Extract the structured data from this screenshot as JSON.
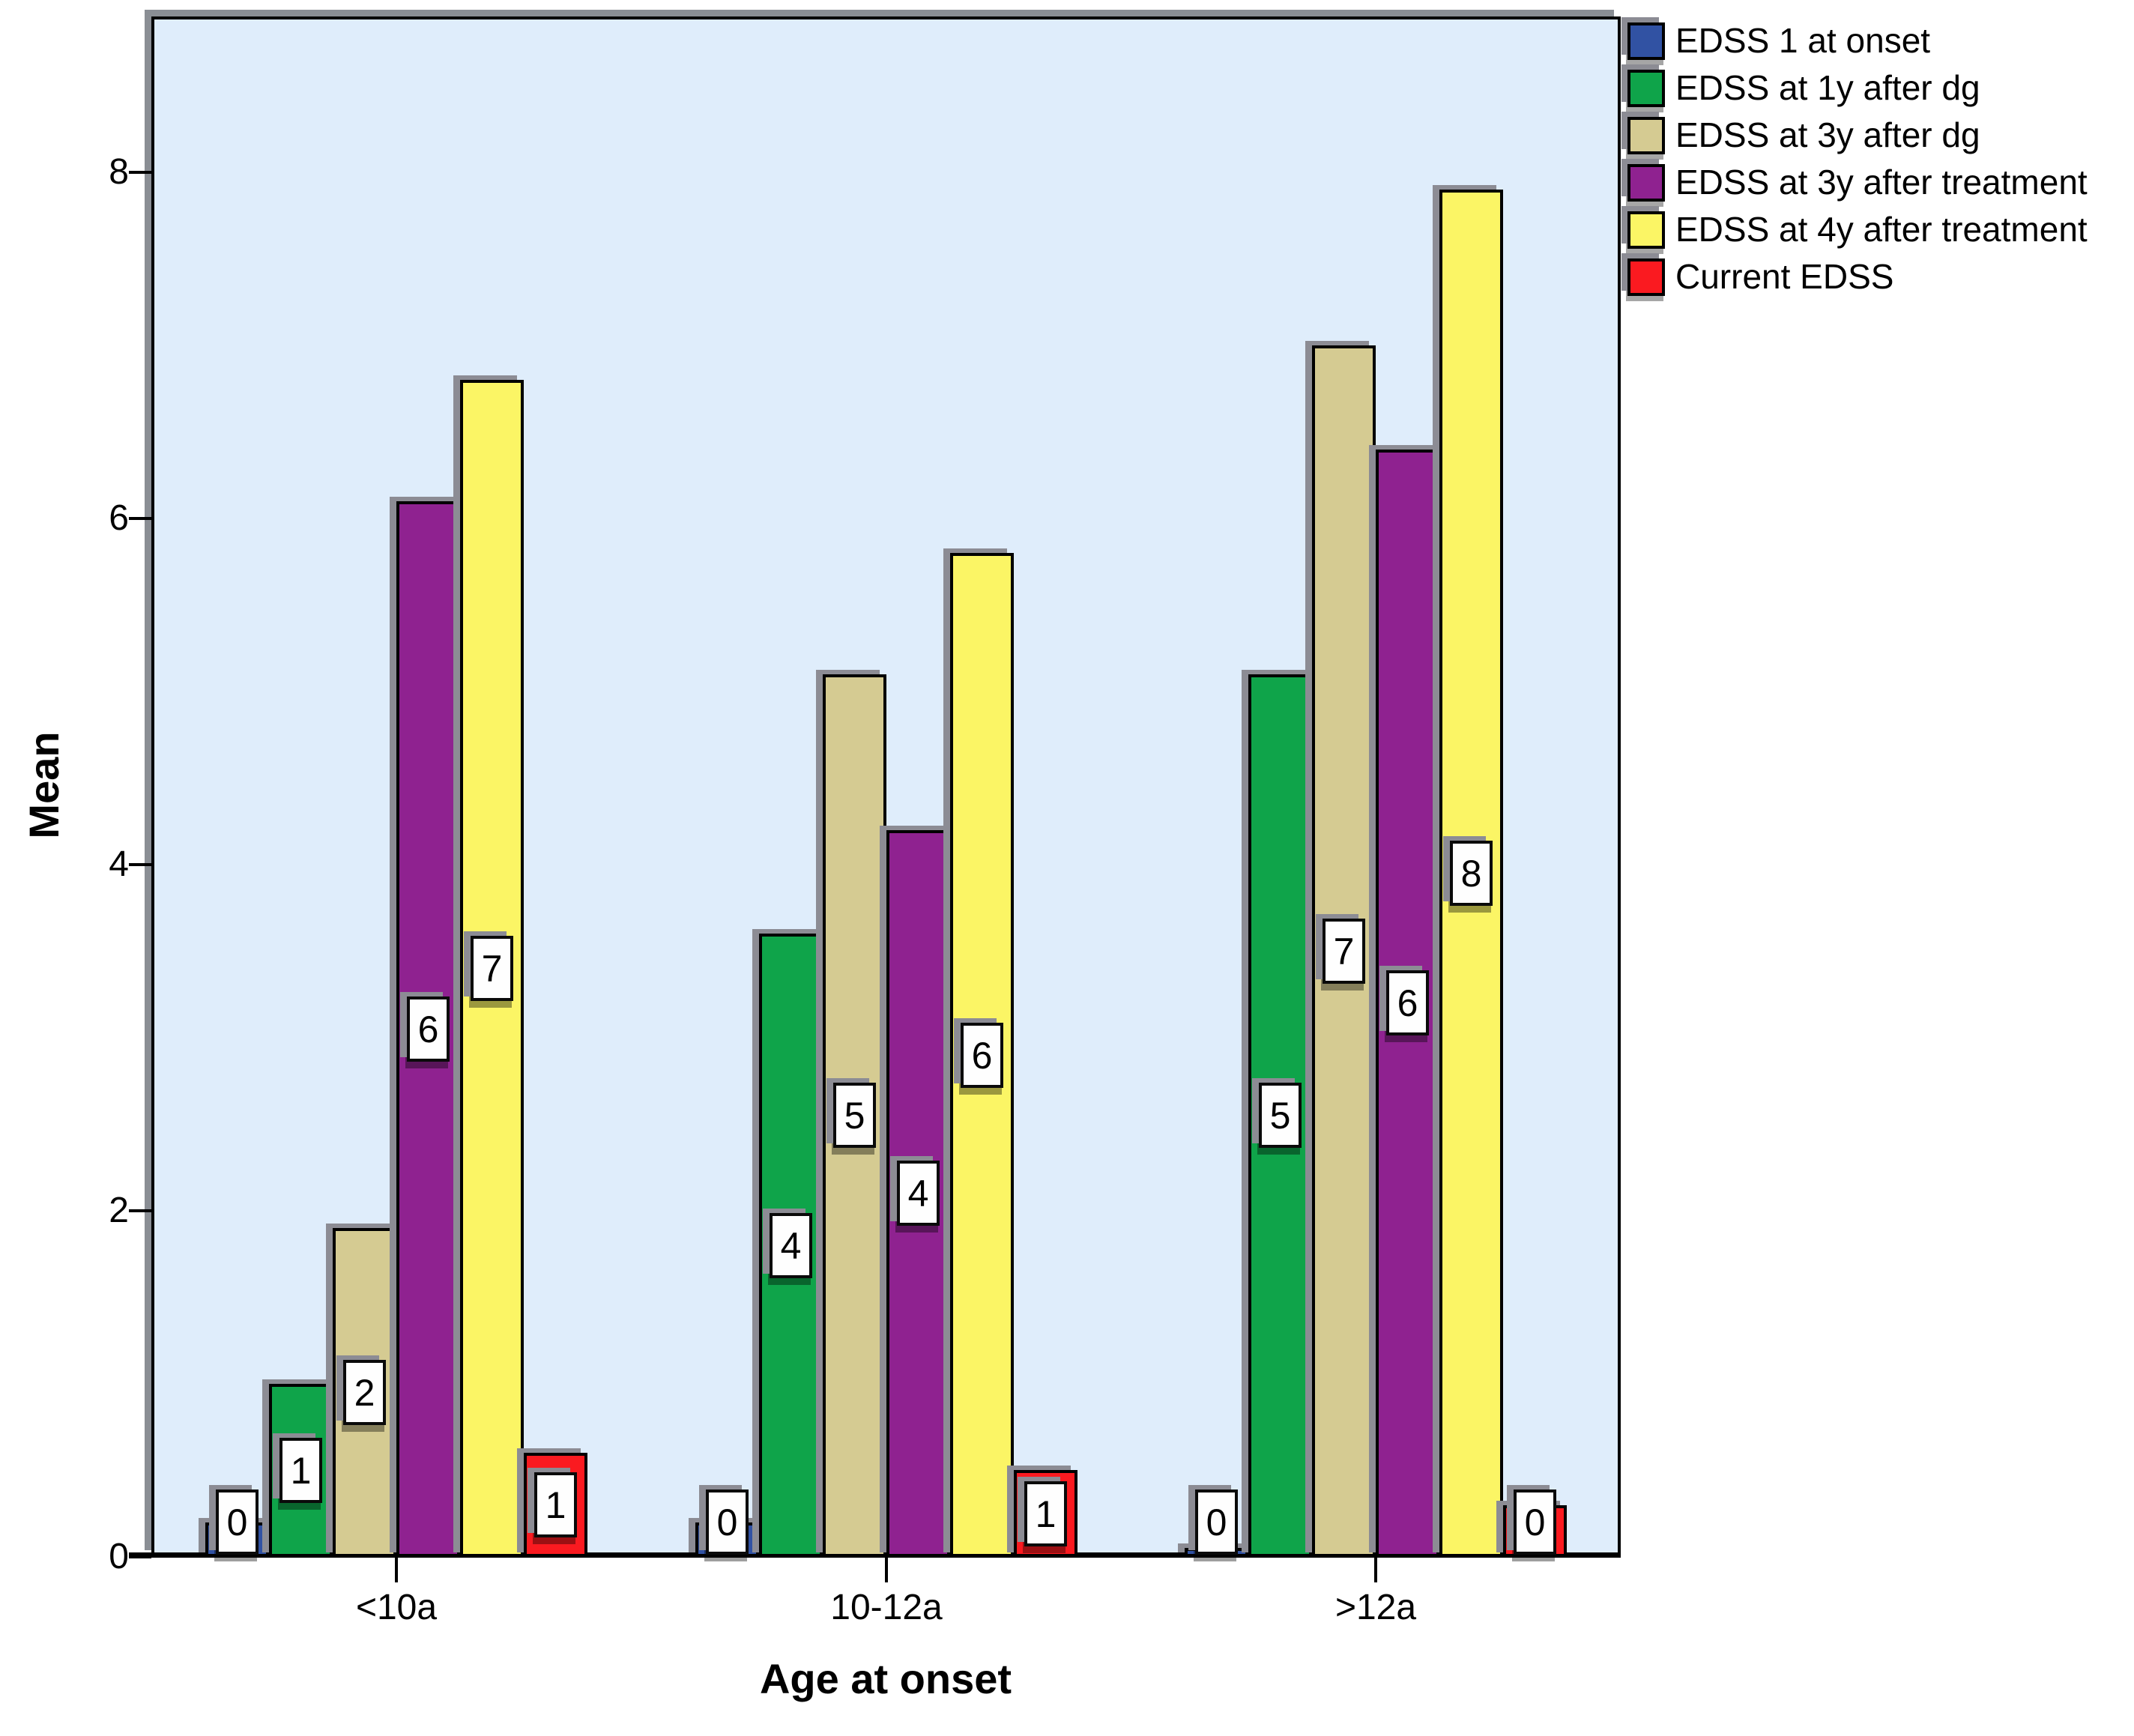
{
  "chart_data": {
    "type": "bar",
    "title": "",
    "xlabel": "Age at onset",
    "ylabel": "Mean",
    "categories": [
      "<10a",
      "10-12a",
      ">12a"
    ],
    "y_tick_labels": [
      "0",
      "2",
      "4",
      "6",
      "8"
    ],
    "y_tick_values": [
      0,
      2,
      4,
      6,
      8
    ],
    "ylim": [
      0,
      8.9
    ],
    "grid": false,
    "legend_position": "top-right",
    "plot_background": "#DFEDFB",
    "bar_label_box": {
      "background": "#FFFFFF",
      "border": "#000000"
    },
    "series": [
      {
        "name": "EDSS 1 at onset",
        "color": "#3152A3",
        "values": [
          0.2,
          0.2,
          0.05
        ],
        "bar_labels": [
          "0",
          "0",
          "0"
        ]
      },
      {
        "name": "EDSS at 1y after dg",
        "color": "#0FA44A",
        "values": [
          1.0,
          3.6,
          5.1
        ],
        "bar_labels": [
          "1",
          "4",
          "5"
        ]
      },
      {
        "name": "EDSS at 3y after dg",
        "color": "#D5CB92",
        "values": [
          1.9,
          5.1,
          7.0
        ],
        "bar_labels": [
          "2",
          "5",
          "7"
        ]
      },
      {
        "name": "EDSS at 3y after treatment",
        "color": "#8F2290",
        "values": [
          6.1,
          4.2,
          6.4
        ],
        "bar_labels": [
          "6",
          "4",
          "6"
        ]
      },
      {
        "name": "EDSS at 4y after treatment",
        "color": "#FBF565",
        "values": [
          6.8,
          5.8,
          7.9
        ],
        "bar_labels": [
          "7",
          "6",
          "8"
        ]
      },
      {
        "name": "Current EDSS",
        "color": "#FA1A20",
        "values": [
          0.6,
          0.5,
          0.3
        ],
        "bar_labels": [
          "1",
          "1",
          "0"
        ]
      }
    ]
  }
}
